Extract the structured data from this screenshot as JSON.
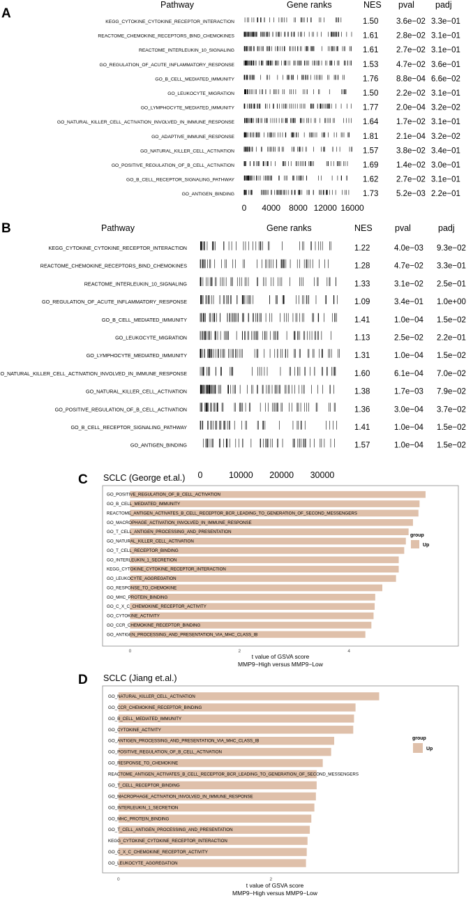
{
  "panels": {
    "a": "A",
    "b": "B",
    "c": "C",
    "d": "D"
  },
  "gsea_headers": {
    "pathway": "Pathway",
    "gene_ranks": "Gene ranks",
    "nes": "NES",
    "pval": "pval",
    "padj": "padj"
  },
  "colors": {
    "bar": "#dfc0aa",
    "frame": "#888888",
    "ink": "#000000"
  },
  "chart_data": [
    {
      "type": "table",
      "panel": "A",
      "columns": [
        "Pathway",
        "Gene ranks",
        "NES",
        "pval",
        "padj"
      ],
      "xlim": [
        0,
        16000
      ],
      "x_ticks": [
        "0",
        "4000",
        "8000",
        "12000",
        "16000"
      ],
      "rows": [
        {
          "pathway": "KEGG_CYTOKINE_CYTOKINE_RECEPTOR_INTERACTION",
          "nes": "1.50",
          "pval": "3.6e−02",
          "padj": "3.3e−01"
        },
        {
          "pathway": "REACTOME_CHEMOKINE_RECEPTORS_BIND_CHEMOKINES",
          "nes": "1.61",
          "pval": "2.8e−02",
          "padj": "3.1e−01"
        },
        {
          "pathway": "REACTOME_INTERLEUKIN_10_SIGNALING",
          "nes": "1.61",
          "pval": "2.7e−02",
          "padj": "3.1e−01"
        },
        {
          "pathway": "GO_REGULATION_OF_ACUTE_INFLAMMATORY_RESPONSE",
          "nes": "1.53",
          "pval": "4.7e−02",
          "padj": "3.6e−01"
        },
        {
          "pathway": "GO_B_CELL_MEDIATED_IMMUNITY",
          "nes": "1.76",
          "pval": "8.8e−04",
          "padj": "6.6e−02"
        },
        {
          "pathway": "GO_LEUKOCYTE_MIGRATION",
          "nes": "1.50",
          "pval": "2.2e−02",
          "padj": "3.1e−01"
        },
        {
          "pathway": "GO_LYMPHOCYTE_MEDIATED_IMMUNITY",
          "nes": "1.77",
          "pval": "2.0e−04",
          "padj": "3.2e−02"
        },
        {
          "pathway": "GO_NATURAL_KILLER_CELL_ACTIVATION_INVOLVED_IN_IMMUNE_RESPONSE",
          "nes": "1.64",
          "pval": "1.7e−02",
          "padj": "3.1e−01"
        },
        {
          "pathway": "GO_ADAPTIVE_IMMUNE_RESPONSE",
          "nes": "1.81",
          "pval": "2.1e−04",
          "padj": "3.2e−02"
        },
        {
          "pathway": "GO_NATURAL_KILLER_CELL_ACTIVATION",
          "nes": "1.57",
          "pval": "3.8e−02",
          "padj": "3.4e−01"
        },
        {
          "pathway": "GO_POSITIVE_REGULATION_OF_B_CELL_ACTIVATION",
          "nes": "1.69",
          "pval": "1.4e−02",
          "padj": "3.0e−01"
        },
        {
          "pathway": "GO_B_CELL_RECEPTOR_SIGNALING_PATHWAY",
          "nes": "1.62",
          "pval": "2.7e−02",
          "padj": "3.1e−01"
        },
        {
          "pathway": "GO_ANTIGEN_BINDING",
          "nes": "1.73",
          "pval": "5.2e−03",
          "padj": "2.2e−01"
        }
      ]
    },
    {
      "type": "table",
      "panel": "B",
      "columns": [
        "Pathway",
        "Gene ranks",
        "NES",
        "pval",
        "padj"
      ],
      "xlim": [
        0,
        36000
      ],
      "x_ticks": [
        "0",
        "10000",
        "20000",
        "30000"
      ],
      "rows": [
        {
          "pathway": "KEGG_CYTOKINE_CYTOKINE_RECEPTOR_INTERACTION",
          "nes": "1.22",
          "pval": "4.0e−03",
          "padj": "9.3e−02"
        },
        {
          "pathway": "REACTOME_CHEMOKINE_RECEPTORS_BIND_CHEMOKINES",
          "nes": "1.28",
          "pval": "4.7e−02",
          "padj": "3.3e−01"
        },
        {
          "pathway": "REACTOME_INTERLEUKIN_10_SIGNALING",
          "nes": "1.33",
          "pval": "3.1e−02",
          "padj": "2.5e−01"
        },
        {
          "pathway": "GO_REGULATION_OF_ACUTE_INFLAMMATORY_RESPONSE",
          "nes": "1.09",
          "pval": "3.4e−01",
          "padj": "1.0e+00"
        },
        {
          "pathway": "GO_B_CELL_MEDIATED_IMMUNITY",
          "nes": "1.41",
          "pval": "1.0e−04",
          "padj": "1.5e−02"
        },
        {
          "pathway": "GO_LEUKOCYTE_MIGRATION",
          "nes": "1.13",
          "pval": "2.5e−02",
          "padj": "2.2e−01"
        },
        {
          "pathway": "GO_LYMPHOCYTE_MEDIATED_IMMUNITY",
          "nes": "1.31",
          "pval": "1.0e−04",
          "padj": "1.5e−02"
        },
        {
          "pathway": "GO_NATURAL_KILLER_CELL_ACTIVATION_INVOLVED_IN_IMMUNE_RESPONSE",
          "nes": "1.60",
          "pval": "6.1e−04",
          "padj": "7.0e−02"
        },
        {
          "pathway": "GO_NATURAL_KILLER_CELL_ACTIVATION",
          "nes": "1.38",
          "pval": "1.7e−03",
          "padj": "7.9e−02"
        },
        {
          "pathway": "GO_POSITIVE_REGULATION_OF_B_CELL_ACTIVATION",
          "nes": "1.36",
          "pval": "3.0e−04",
          "padj": "3.7e−02"
        },
        {
          "pathway": "GO_B_CELL_RECEPTOR_SIGNALING_PATHWAY",
          "nes": "1.41",
          "pval": "1.0e−04",
          "padj": "1.5e−02"
        },
        {
          "pathway": "GO_ANTIGEN_BINDING",
          "nes": "1.57",
          "pval": "1.0e−04",
          "padj": "1.5e−02"
        }
      ]
    },
    {
      "type": "bar",
      "panel": "C",
      "title": "SCLC (George et.al.)",
      "xlabel": "t value of GSVA score",
      "xlabel2": "MMP9−High versus MMP9−Low",
      "xlim": [
        -0.4,
        5.4
      ],
      "x_ticks": [
        0,
        2,
        4
      ],
      "legend": {
        "title": "group",
        "label": "Up",
        "placement": "right"
      },
      "categories": [
        "GO_POSITIVE_REGULATION_OF_B_CELL_ACTIVATION",
        "GO_B_CELL_MEDIATED_IMMUNITY",
        "REACTOME_ANTIGEN_ACTIVATES_B_CELL_RECEPTOR_BCR_LEADING_TO_GENERATION_OF_SECOND_MESSENGERS",
        "GO_MACROPHAGE_ACTIVATION_INVOLVED_IN_IMMUNE_RESPONSE",
        "GO_T_CELL_ANTIGEN_PROCESSING_AND_PRESENTATION",
        "GO_NATURAL_KILLER_CELL_ACTIVATION",
        "GO_T_CELL_RECEPTOR_BINDING",
        "GO_INTERLEUKIN_1_SECRETION",
        "KEGG_CYTOKINE_CYTOKINE_RECEPTOR_INTERACTION",
        "GO_LEUKOCYTE_AGGREGATION",
        "GO_RESPONSE_TO_CHEMOKINE",
        "GO_MHC_PROTEIN_BINDING",
        "GO_C_X_C_CHEMOKINE_RECEPTOR_ACTIVITY",
        "GO_CYTOKINE_ACTIVITY",
        "GO_CCR_CHEMOKINE_RECEPTOR_BINDING",
        "GO_ANTIGEN_PROCESSING_AND_PRESENTATION_VIA_MHC_CLASS_IB"
      ],
      "values": [
        5.4,
        5.29,
        5.27,
        5.17,
        5.09,
        5.04,
        5.01,
        4.91,
        4.91,
        4.86,
        4.61,
        4.48,
        4.47,
        4.45,
        4.41,
        4.3
      ]
    },
    {
      "type": "bar",
      "panel": "D",
      "title": "SCLC (Jiang et.al.)",
      "xlabel": "t value of GSVA score",
      "xlabel2": "MMP9−High versus MMP9−Low",
      "xlim": [
        -0.2,
        3.8
      ],
      "x_ticks": [
        0,
        2
      ],
      "legend": {
        "title": "group",
        "label": "Up",
        "placement": "right"
      },
      "categories": [
        "GO_NATURAL_KILLER_CELL_ACTIVATION",
        "GO_CCR_CHEMOKINE_RECEPTOR_BINDING",
        "GO_B_CELL_MEDIATED_IMMUNITY",
        "GO_CYTOKINE_ACTIVITY",
        "GO_ANTIGEN_PROCESSING_AND_PRESENTATION_VIA_MHC_CLASS_IB",
        "GO_POSITIVE_REGULATION_OF_B_CELL_ACTIVATION",
        "GO_RESPONSE_TO_CHEMOKINE",
        "REACTOME_ANTIGEN_ACTIVATES_B_CELL_RECEPTOR_BCR_LEADING_TO_GENERATION_OF_SECOND_MESSENGERS",
        "GO_T_CELL_RECEPTOR_BINDING",
        "GO_MACROPHAGE_ACTIVATION_INVOLVED_IN_IMMUNE_RESPONSE",
        "GO_INTERLEUKIN_1_SECRETION",
        "GO_MHC_PROTEIN_BINDING",
        "GO_T_CELL_ANTIGEN_PROCESSING_AND_PRESENTATION",
        "KEGG_CYTOKINE_CYTOKINE_RECEPTOR_INTERACTION",
        "GO_C_X_C_CHEMOKINE_RECEPTOR_ACTIVITY",
        "GO_LEUKOCYTE_AGGREGATION"
      ],
      "values": [
        3.42,
        3.11,
        3.09,
        3.08,
        2.83,
        2.79,
        2.68,
        2.6,
        2.6,
        2.59,
        2.57,
        2.53,
        2.51,
        2.48,
        2.47,
        2.46
      ]
    }
  ]
}
